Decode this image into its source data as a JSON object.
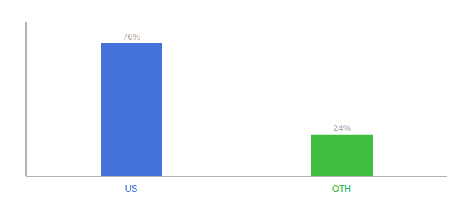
{
  "chart_data": {
    "type": "bar",
    "categories": [
      "US",
      "OTH"
    ],
    "values": [
      76,
      24
    ],
    "value_labels": [
      "76%",
      "24%"
    ],
    "colors": [
      "#4472db",
      "#3dbf3d"
    ],
    "ylim": [
      0,
      88
    ],
    "data_labels": true,
    "tick_labels": "x",
    "grid": false
  }
}
